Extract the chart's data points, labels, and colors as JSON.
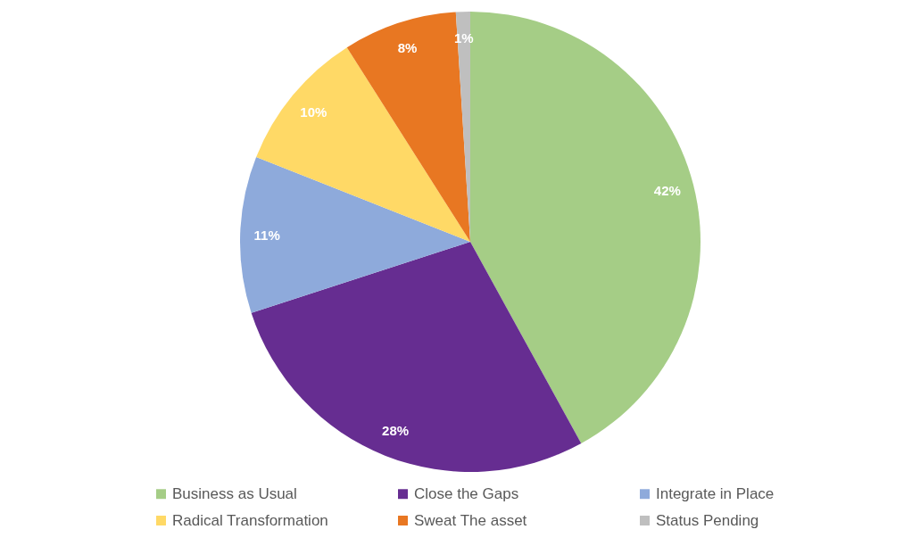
{
  "chart_data": {
    "type": "pie",
    "categories": [
      "Business as Usual",
      "Close the Gaps",
      "Integrate in Place",
      "Radical Transformation",
      "Sweat The asset",
      "Status Pending"
    ],
    "values": [
      42,
      28,
      11,
      10,
      8,
      1
    ],
    "value_labels": [
      "42%",
      "28%",
      "11%",
      "10%",
      "8%",
      "1%"
    ],
    "colors": [
      "#a5cd86",
      "#662d91",
      "#8eaadb",
      "#ffd966",
      "#e87722",
      "#bfbfbf"
    ],
    "legend": "bottom"
  }
}
